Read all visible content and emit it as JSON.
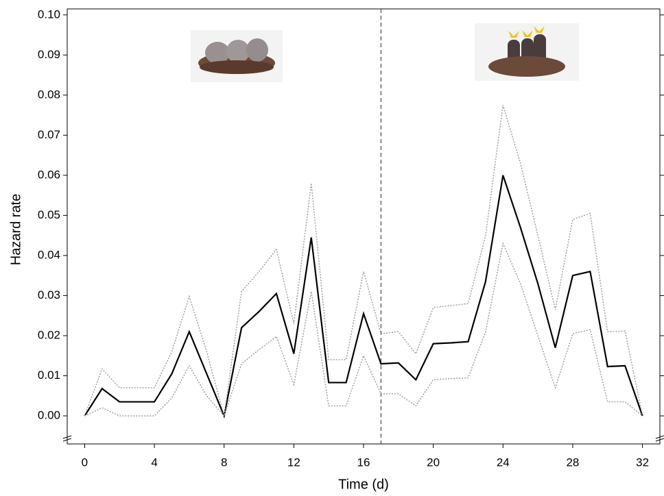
{
  "chart_data": {
    "type": "line",
    "x_label": "Time (d)",
    "y_label": "Hazard rate",
    "x": [
      0,
      1,
      2,
      3,
      4,
      5,
      6,
      7,
      8,
      9,
      10,
      11,
      12,
      13,
      14,
      15,
      16,
      17,
      18,
      19,
      20,
      21,
      22,
      23,
      24,
      25,
      26,
      27,
      28,
      29,
      30,
      31,
      32
    ],
    "series": [
      {
        "color": "#000000",
        "style": "solid",
        "values": [
          0,
          0.0068,
          0.0035,
          0.0035,
          0.0035,
          0.0105,
          0.021,
          0.0105,
          0,
          0.022,
          0.026,
          0.0305,
          0.0155,
          0.0445,
          0.0083,
          0.0083,
          0.0255,
          0.013,
          0.0132,
          0.009,
          0.018,
          0.0182,
          0.0185,
          0.0335,
          0.06,
          0.047,
          0.033,
          0.017,
          0.035,
          0.036,
          0.0123,
          0.0125,
          0
        ]
      },
      {
        "color": "#999999",
        "style": "dotted",
        "values": [
          0,
          0.0117,
          0.007,
          0.007,
          0.007,
          0.016,
          0.0298,
          0.016,
          0,
          0.031,
          0.036,
          0.0415,
          0.023,
          0.058,
          0.014,
          0.014,
          0.036,
          0.0205,
          0.021,
          0.0155,
          0.027,
          0.0275,
          0.028,
          0.045,
          0.0775,
          0.063,
          0.045,
          0.0265,
          0.049,
          0.0505,
          0.021,
          0.0212,
          0
        ]
      },
      {
        "color": "#999999",
        "style": "dotted",
        "values": [
          0,
          0.002,
          0,
          0,
          0,
          0.0045,
          0.0125,
          0.005,
          0,
          0.013,
          0.0165,
          0.0198,
          0.0078,
          0.031,
          0.0025,
          0.0025,
          0.015,
          0.0055,
          0.0055,
          0.0025,
          0.009,
          0.0093,
          0.0095,
          0.021,
          0.043,
          0.033,
          0.02,
          0.007,
          0.0205,
          0.0215,
          0.0035,
          0.0035,
          0
        ]
      }
    ],
    "vline": 17,
    "xlim": [
      -1,
      33
    ],
    "xticks": [
      0,
      4,
      8,
      12,
      16,
      20,
      24,
      28,
      32
    ],
    "ylim": [
      -0.007,
      0.1015
    ],
    "yticks": [
      {
        "value": 0,
        "label": "0.00"
      },
      0.01,
      0.02,
      0.03,
      0.04,
      0.05,
      0.06,
      0.07,
      0.08,
      0.09,
      {
        "value": 0.1,
        "label": "0.10"
      }
    ],
    "grid": false
  }
}
